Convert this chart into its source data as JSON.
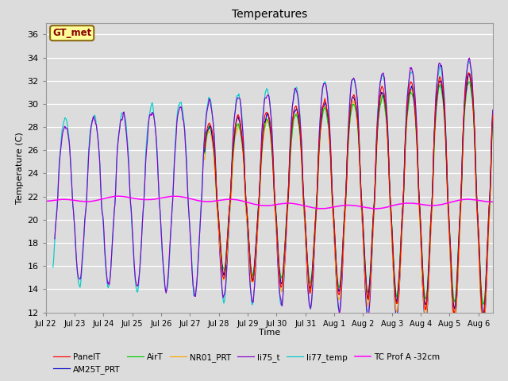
{
  "title": "Temperatures",
  "xlabel": "Time",
  "ylabel": "Temperature (C)",
  "ylim": [
    12,
    37
  ],
  "yticks": [
    12,
    14,
    16,
    18,
    20,
    22,
    24,
    26,
    28,
    30,
    32,
    34,
    36
  ],
  "background_color": "#dcdcdc",
  "annotation_text": "GT_met",
  "annotation_color": "#8B0000",
  "annotation_bg": "#FFFF99",
  "annotation_edge": "#8B6914",
  "series_colors": {
    "PanelT": "#FF0000",
    "AM25T_PRT": "#0000CC",
    "AirT": "#00CC00",
    "NR01_PRT": "#FFA500",
    "li75_t": "#8800CC",
    "li77_temp": "#00CCCC",
    "TC Prof A -32cm": "#FF00FF"
  },
  "xtick_labels": [
    "Jul 22",
    "Jul 23",
    "Jul 24",
    "Jul 25",
    "Jul 26",
    "Jul 27",
    "Jul 28",
    "Jul 29",
    "Jul 30",
    "Jul 31",
    "Aug 1",
    "Aug 2",
    "Aug 3",
    "Aug 4",
    "Aug 5",
    "Aug 6"
  ],
  "n_days": 15.5
}
